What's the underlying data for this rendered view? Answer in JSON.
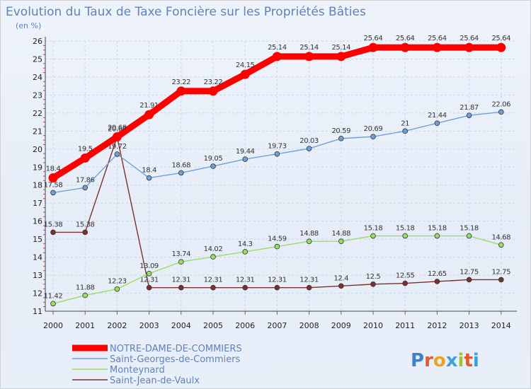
{
  "chart_data": {
    "type": "line",
    "title": "Evolution du Taux de Taxe Foncière sur les Propriétés Bâties",
    "unit_label": "(en %)",
    "xlabel": "",
    "ylabel": "",
    "ylim": [
      11,
      26
    ],
    "yticks": [
      "11",
      "12",
      "13",
      "14",
      "15",
      "16",
      "17",
      "18",
      "19",
      "20",
      "21",
      "22",
      "23",
      "24",
      "25",
      "26"
    ],
    "categories": [
      "2000",
      "2001",
      "2002",
      "2003",
      "2004",
      "2005",
      "2006",
      "2007",
      "2008",
      "2009",
      "2010",
      "2011",
      "2012",
      "2013",
      "2014"
    ],
    "series": [
      {
        "name": "NOTRE-DAME-DE-COMMIERS",
        "color": "#ff0000",
        "values": [
          18.4,
          19.5,
          20.68,
          21.91,
          23.22,
          23.22,
          24.15,
          25.14,
          25.14,
          25.14,
          25.64,
          25.64,
          25.64,
          25.64,
          25.64
        ],
        "labels": [
          "18.4",
          "19.5",
          "20.68",
          "21.91",
          "23.22",
          "23.22",
          "24.15",
          "25.14",
          "25.14",
          "25.14",
          "25.64",
          "25.64",
          "25.64",
          "25.64",
          "25.64"
        ]
      },
      {
        "name": "Saint-Georges-de-Commiers",
        "color": "#6fa0d8",
        "values": [
          17.58,
          17.86,
          19.72,
          18.4,
          18.68,
          19.05,
          19.44,
          19.73,
          20.03,
          20.59,
          20.69,
          21,
          21.44,
          21.87,
          22.06
        ],
        "labels": [
          "17.58",
          "17.86",
          "19.72",
          "18.4",
          "18.68",
          "19.05",
          "19.44",
          "19.73",
          "20.03",
          "20.59",
          "20.69",
          "21",
          "21.44",
          "21.87",
          "22.06"
        ]
      },
      {
        "name": "Monteynard",
        "color": "#99dd66",
        "values": [
          11.42,
          11.88,
          12.23,
          13.09,
          13.74,
          14.02,
          14.3,
          14.59,
          14.88,
          14.88,
          15.18,
          15.18,
          15.18,
          15.18,
          14.68
        ],
        "labels": [
          "11.42",
          "11.88",
          "12.23",
          "13.09",
          "13.74",
          "14.02",
          "14.3",
          "14.59",
          "14.88",
          "14.88",
          "15.18",
          "15.18",
          "15.18",
          "15.18",
          "14.68"
        ]
      },
      {
        "name": "Saint-Jean-de-Vaulx",
        "color": "#7a3030",
        "values": [
          15.38,
          15.38,
          20.68,
          12.31,
          12.31,
          12.31,
          12.31,
          12.31,
          12.31,
          12.4,
          12.5,
          12.55,
          12.65,
          12.75,
          12.75
        ],
        "labels": [
          "15.38",
          "15.38",
          "20.68",
          "12.31",
          "12.31",
          "12.31",
          "12.31",
          "12.31",
          "12.31",
          "12.4",
          "12.5",
          "12.55",
          "12.65",
          "12.75",
          "12.75"
        ]
      }
    ],
    "legend_position": "bottom-left"
  },
  "brand": {
    "logo_text": "Proxiti"
  }
}
